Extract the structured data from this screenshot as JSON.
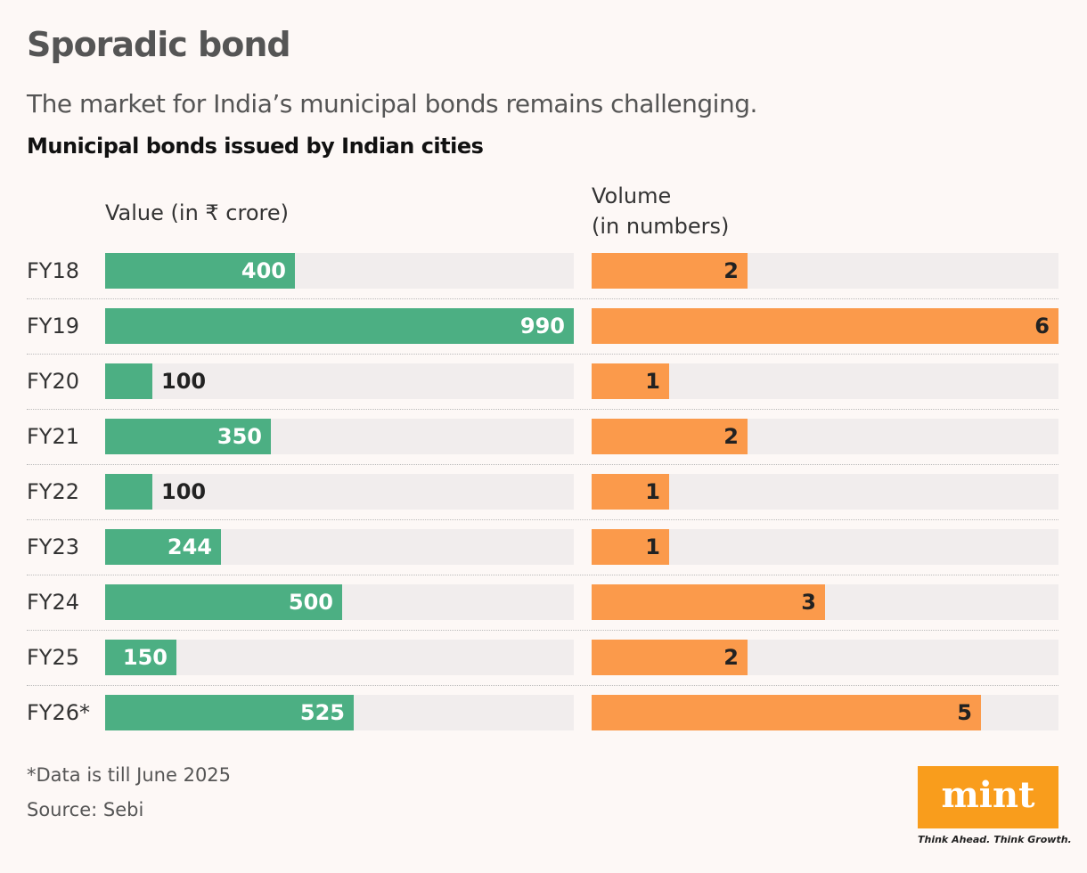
{
  "header": {
    "title": "Sporadic bond",
    "subtitle": "The market for India’s municipal bonds remains challenging.",
    "chart_title": "Municipal bonds issued by Indian cities"
  },
  "columns": {
    "value_heading": "Value (in ₹ crore)",
    "volume_heading_line1": "Volume",
    "volume_heading_line2": "(in numbers)"
  },
  "footer": {
    "footnote": "*Data is till June 2025",
    "source": "Source: Sebi",
    "logo_text": "mint",
    "tagline": "Think Ahead. Think Growth."
  },
  "colors": {
    "value_bar": "#4caf83",
    "volume_bar": "#fb9a4b",
    "logo_bg": "#f99d1c"
  },
  "chart_data": {
    "type": "bar",
    "orientation": "horizontal",
    "categories": [
      "FY18",
      "FY19",
      "FY20",
      "FY21",
      "FY22",
      "FY23",
      "FY24",
      "FY25",
      "FY26*"
    ],
    "series": [
      {
        "name": "Value (in ₹ crore)",
        "values": [
          400,
          990,
          100,
          350,
          100,
          244,
          500,
          150,
          525
        ],
        "xlim": [
          0,
          990
        ]
      },
      {
        "name": "Volume (in numbers)",
        "values": [
          2,
          6,
          1,
          2,
          1,
          1,
          3,
          2,
          5
        ],
        "xlim": [
          0,
          6
        ]
      }
    ]
  }
}
